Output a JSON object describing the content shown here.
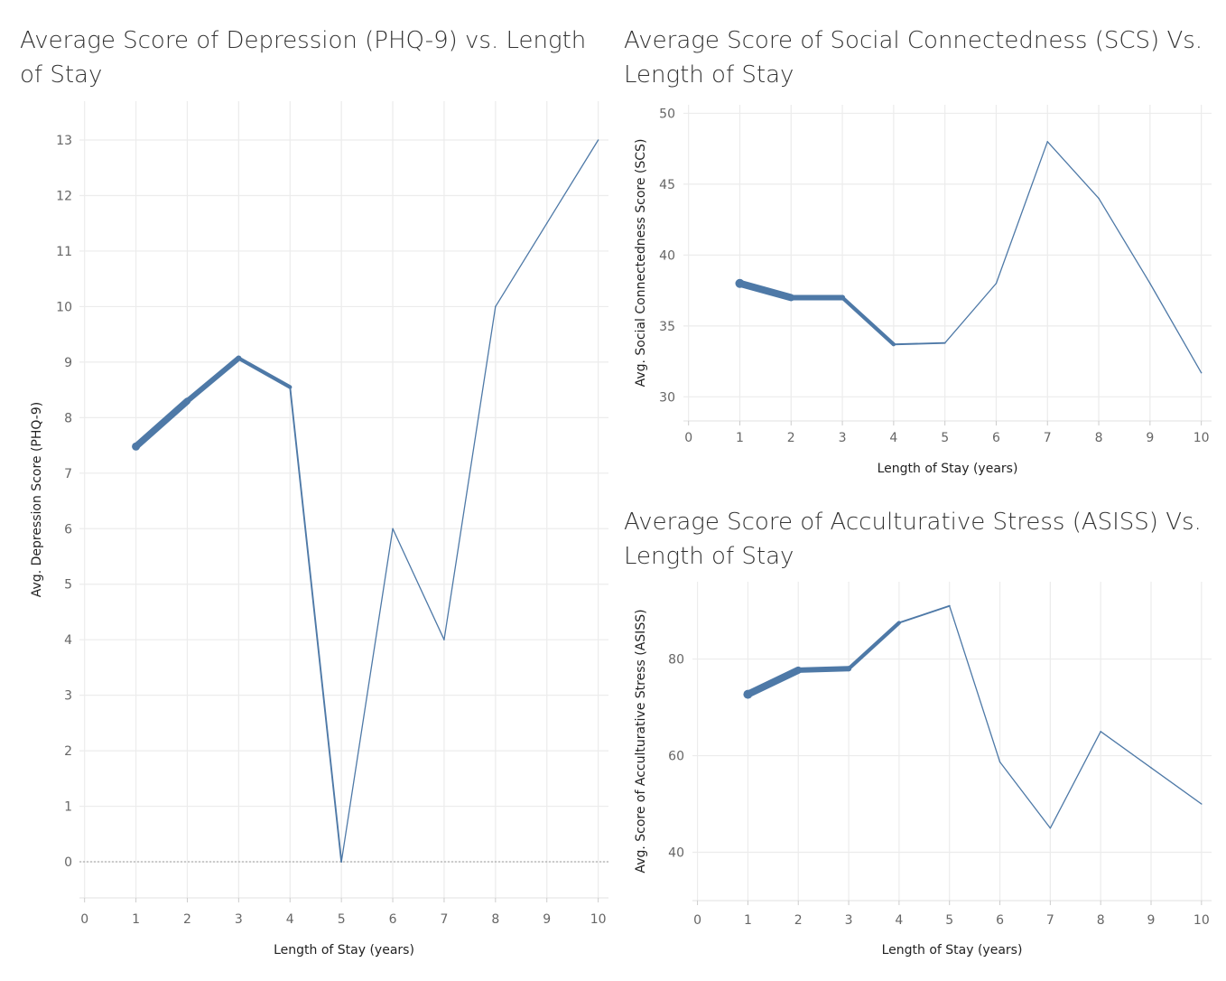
{
  "chart_data": [
    {
      "type": "line",
      "title": "Average Score of Depression (PHQ-9) vs. Length of Stay",
      "xlabel": "Length of Stay (years)",
      "ylabel": "Avg. Depression Score (PHQ-9)",
      "xlim": [
        -0.1,
        10.2
      ],
      "ylim": [
        -0.65,
        13.7
      ],
      "x_ticks": [
        0,
        1,
        2,
        3,
        4,
        5,
        6,
        7,
        8,
        9,
        10
      ],
      "y_ticks": [
        0,
        1,
        2,
        3,
        4,
        5,
        6,
        7,
        8,
        9,
        10,
        11,
        12,
        13
      ],
      "zero_line": true,
      "grid": true,
      "color": "#4e79a7",
      "x": [
        1,
        2,
        3,
        4,
        5,
        6,
        7,
        8,
        9,
        10
      ],
      "y": [
        7.48,
        8.3,
        9.07,
        8.55,
        0,
        6,
        4,
        10,
        11.5,
        13
      ],
      "weights": [
        9,
        6,
        6,
        2.5,
        1.3,
        1.3,
        1.3,
        1.3,
        1.3,
        1.3
      ]
    },
    {
      "type": "line",
      "title": "Average Score of Social Connectedness (SCS) Vs. Length of Stay",
      "xlabel": "Length of Stay (years)",
      "ylabel": "Avg. Social Connectedness  Score (SCS)",
      "xlim": [
        -0.1,
        10.2
      ],
      "ylim": [
        28.3,
        50.6
      ],
      "x_ticks": [
        0,
        1,
        2,
        3,
        4,
        5,
        6,
        7,
        8,
        9,
        10
      ],
      "y_ticks": [
        30,
        35,
        40,
        45,
        50
      ],
      "zero_line": false,
      "grid": true,
      "color": "#4e79a7",
      "x": [
        1,
        2,
        3,
        4,
        5,
        6,
        7,
        8,
        9,
        10
      ],
      "y": [
        38,
        37,
        37,
        33.7,
        33.8,
        38,
        48,
        44,
        38,
        31.7
      ],
      "weights": [
        10,
        6,
        6,
        2.5,
        1.3,
        1.3,
        1.3,
        1.3,
        1.3,
        1.3
      ]
    },
    {
      "type": "line",
      "title": "Average Score of Acculturative Stress (ASISS) Vs. Length of Stay",
      "xlabel": "Length of Stay (years)",
      "ylabel": "Avg. Score of Acculturative Stress (ASISS)",
      "xlim": [
        -0.1,
        10.2
      ],
      "ylim": [
        30,
        96
      ],
      "x_ticks": [
        0,
        1,
        2,
        3,
        4,
        5,
        6,
        7,
        8,
        9,
        10
      ],
      "y_ticks": [
        40,
        60,
        80
      ],
      "zero_line": false,
      "grid": true,
      "color": "#4e79a7",
      "x": [
        1,
        2,
        3,
        4,
        5,
        6,
        7,
        8,
        9,
        10
      ],
      "y": [
        72.7,
        77.7,
        78,
        87.5,
        91,
        58.7,
        45,
        65,
        57.5,
        50
      ],
      "weights": [
        10,
        6,
        6,
        2.5,
        1.3,
        1.3,
        1.3,
        1.3,
        1.3,
        1.3
      ]
    }
  ]
}
